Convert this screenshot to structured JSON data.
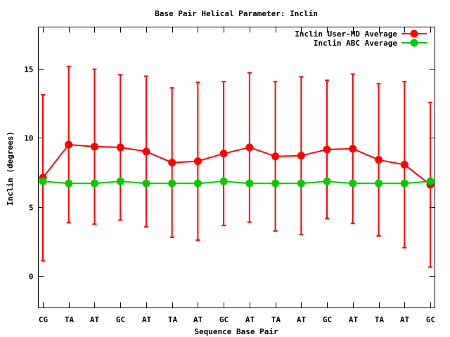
{
  "chart_data": {
    "type": "line",
    "title": "Base Pair Helical Parameter: Inclin",
    "xlabel": "Sequence Base Pair",
    "ylabel": "Inclin (degrees)",
    "categories": [
      "CG",
      "TA",
      "AT",
      "GC",
      "AT",
      "TA",
      "AT",
      "GC",
      "AT",
      "TA",
      "AT",
      "GC",
      "AT",
      "TA",
      "AT",
      "GC"
    ],
    "ylim": [
      -2.3,
      18
    ],
    "yticks": [
      0,
      5,
      10,
      15
    ],
    "legend_position": "top-right",
    "grid": false,
    "series": [
      {
        "name": "Inclin User-MD Average",
        "color": "#ff0000",
        "values": [
          7.1,
          9.5,
          9.35,
          9.3,
          9.0,
          8.2,
          8.3,
          8.85,
          9.3,
          8.65,
          8.7,
          9.15,
          9.2,
          8.4,
          8.05,
          6.6
        ],
        "error": [
          6.0,
          5.65,
          5.6,
          5.25,
          5.45,
          5.4,
          5.7,
          5.2,
          5.4,
          5.4,
          5.7,
          5.0,
          5.4,
          5.5,
          6.0,
          5.95
        ]
      },
      {
        "name": "Inclin ABC Average",
        "color": "#00cc00",
        "values": [
          6.85,
          6.7,
          6.7,
          6.85,
          6.7,
          6.7,
          6.7,
          6.85,
          6.7,
          6.7,
          6.7,
          6.85,
          6.7,
          6.7,
          6.7,
          6.85
        ]
      }
    ]
  }
}
